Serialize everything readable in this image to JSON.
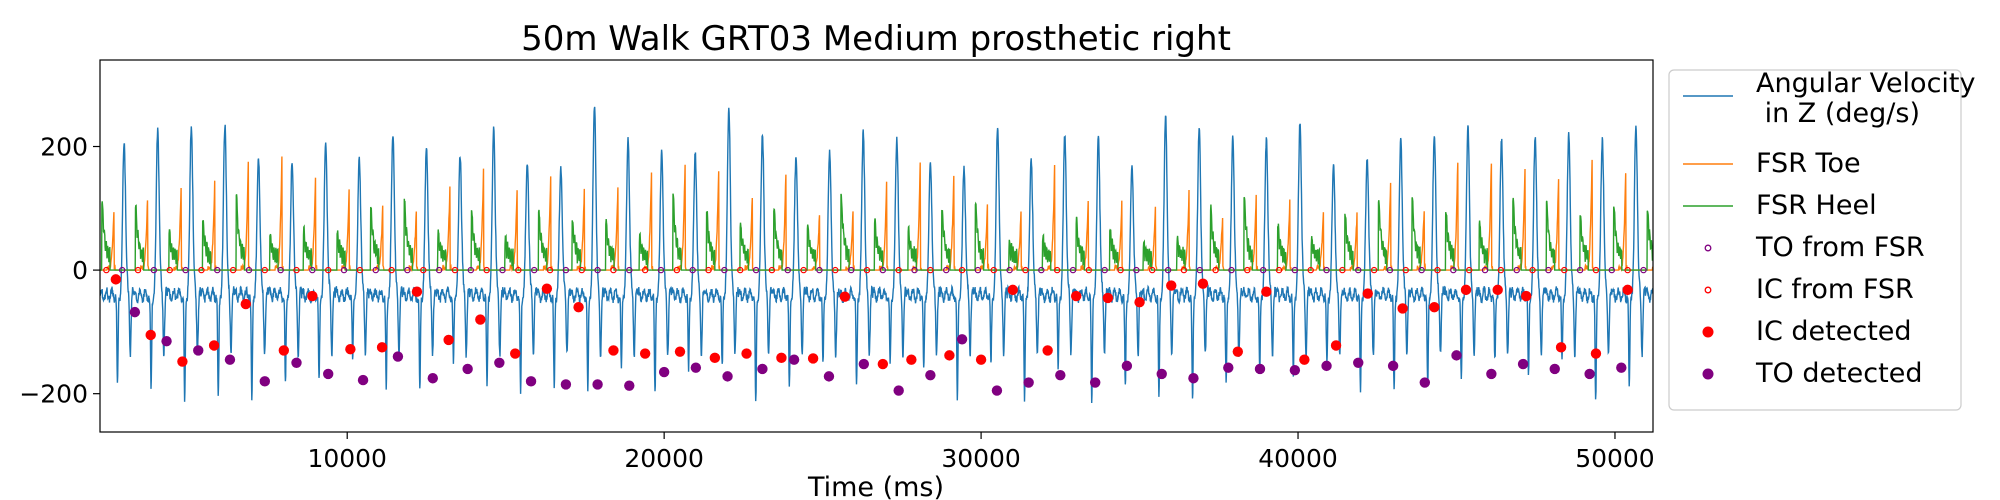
{
  "chart_data": {
    "type": "line",
    "title": "50m Walk GRT03 Medium prosthetic right",
    "xlabel": "Time (ms)",
    "ylabel": "",
    "xlim": [
      2200,
      51200
    ],
    "ylim": [
      -262,
      340
    ],
    "xticks": [
      10000,
      20000,
      30000,
      40000,
      50000
    ],
    "yticks": [
      -200,
      0,
      200
    ],
    "grid": false,
    "legend_position": "outside-right",
    "series": [
      {
        "name": "Angular Velocity\n in Z (deg/s)",
        "kind": "line",
        "color": "#1f77b4"
      },
      {
        "name": "FSR Toe",
        "kind": "line",
        "color": "#ff7f0e"
      },
      {
        "name": "FSR Heel",
        "kind": "line",
        "color": "#2ca02c"
      },
      {
        "name": "TO from FSR",
        "kind": "hollow-marker",
        "color": "#800080"
      },
      {
        "name": "IC from FSR",
        "kind": "hollow-marker",
        "color": "#ff0000"
      },
      {
        "name": "IC detected",
        "kind": "marker",
        "color": "#ff0000"
      },
      {
        "name": "TO detected",
        "kind": "marker",
        "color": "#800080"
      }
    ],
    "ic_detected": [
      [
        2700,
        -15
      ],
      [
        3800,
        -105
      ],
      [
        4800,
        -148
      ],
      [
        5800,
        -122
      ],
      [
        6800,
        -55
      ],
      [
        8000,
        -130
      ],
      [
        8900,
        -42
      ],
      [
        10100,
        -128
      ],
      [
        11100,
        -125
      ],
      [
        12200,
        -35
      ],
      [
        13200,
        -113
      ],
      [
        14200,
        -80
      ],
      [
        15300,
        -135
      ],
      [
        16300,
        -30
      ],
      [
        17300,
        -60
      ],
      [
        18400,
        -130
      ],
      [
        19400,
        -135
      ],
      [
        20500,
        -132
      ],
      [
        21600,
        -142
      ],
      [
        22600,
        -135
      ],
      [
        23700,
        -142
      ],
      [
        24700,
        -143
      ],
      [
        25700,
        -43
      ],
      [
        26900,
        -152
      ],
      [
        27800,
        -145
      ],
      [
        29000,
        -138
      ],
      [
        30000,
        -145
      ],
      [
        31000,
        -32
      ],
      [
        32100,
        -130
      ],
      [
        33000,
        -42
      ],
      [
        34000,
        -45
      ],
      [
        35000,
        -52
      ],
      [
        36000,
        -25
      ],
      [
        37000,
        -22
      ],
      [
        38100,
        -132
      ],
      [
        39000,
        -35
      ],
      [
        40200,
        -145
      ],
      [
        41200,
        -122
      ],
      [
        42200,
        -38
      ],
      [
        43300,
        -62
      ],
      [
        44300,
        -60
      ],
      [
        45300,
        -32
      ],
      [
        46300,
        -32
      ],
      [
        47200,
        -42
      ],
      [
        48300,
        -125
      ],
      [
        49400,
        -135
      ],
      [
        50400,
        -32
      ]
    ],
    "to_detected": [
      [
        3300,
        -68
      ],
      [
        4300,
        -115
      ],
      [
        5300,
        -130
      ],
      [
        6300,
        -145
      ],
      [
        7400,
        -180
      ],
      [
        8400,
        -150
      ],
      [
        9400,
        -168
      ],
      [
        10500,
        -178
      ],
      [
        11600,
        -140
      ],
      [
        12700,
        -175
      ],
      [
        13800,
        -160
      ],
      [
        14800,
        -150
      ],
      [
        15800,
        -180
      ],
      [
        16900,
        -185
      ],
      [
        17900,
        -185
      ],
      [
        18900,
        -187
      ],
      [
        20000,
        -165
      ],
      [
        21000,
        -158
      ],
      [
        22000,
        -172
      ],
      [
        23100,
        -160
      ],
      [
        24100,
        -145
      ],
      [
        25200,
        -172
      ],
      [
        26300,
        -152
      ],
      [
        27400,
        -195
      ],
      [
        28400,
        -170
      ],
      [
        29400,
        -112
      ],
      [
        30500,
        -195
      ],
      [
        31500,
        -182
      ],
      [
        32500,
        -170
      ],
      [
        33600,
        -182
      ],
      [
        34600,
        -155
      ],
      [
        35700,
        -168
      ],
      [
        36700,
        -175
      ],
      [
        37800,
        -158
      ],
      [
        38800,
        -160
      ],
      [
        39900,
        -162
      ],
      [
        40900,
        -155
      ],
      [
        41900,
        -150
      ],
      [
        43000,
        -155
      ],
      [
        44000,
        -182
      ],
      [
        45000,
        -138
      ],
      [
        46100,
        -168
      ],
      [
        47100,
        -152
      ],
      [
        48100,
        -160
      ],
      [
        49200,
        -168
      ],
      [
        50200,
        -158
      ]
    ],
    "fsr_events_y": 0,
    "fsr_event_times": [
      2400,
      2900,
      3400,
      3900,
      4400,
      4900,
      5400,
      5900,
      6400,
      6900,
      7400,
      7900,
      8400,
      8900,
      9400,
      9900,
      10400,
      10900,
      11400,
      11900,
      12400,
      12900,
      13400,
      13900,
      14400,
      14900,
      15400,
      15900,
      16400,
      16900,
      17400,
      17900,
      18400,
      18900,
      19400,
      19900,
      20400,
      20900,
      21400,
      21900,
      22400,
      22900,
      23400,
      23900,
      24400,
      24900,
      25400,
      25900,
      26400,
      26900,
      27400,
      27900,
      28400,
      28900,
      29400,
      29900,
      30400,
      30900,
      31400,
      31900,
      32400,
      32900,
      33400,
      33900,
      34400,
      34900,
      35400,
      35900,
      36400,
      36900,
      37400,
      37900,
      38400,
      38900,
      39400,
      39900,
      40400,
      40900,
      41400,
      41900,
      42400,
      42900,
      43400,
      43900,
      44400,
      44900,
      45400,
      45900,
      46400,
      46900,
      47400,
      47900,
      48400,
      48900,
      49400,
      49900,
      50400,
      50900
    ],
    "gait_cycle_ms": 1060,
    "gyro_peak_range": [
      205,
      315
    ],
    "gyro_trough_range": [
      -225,
      -150
    ],
    "fsr_toe_peak_range": [
      90,
      195
    ],
    "fsr_heel_peak_range": [
      60,
      270
    ]
  }
}
